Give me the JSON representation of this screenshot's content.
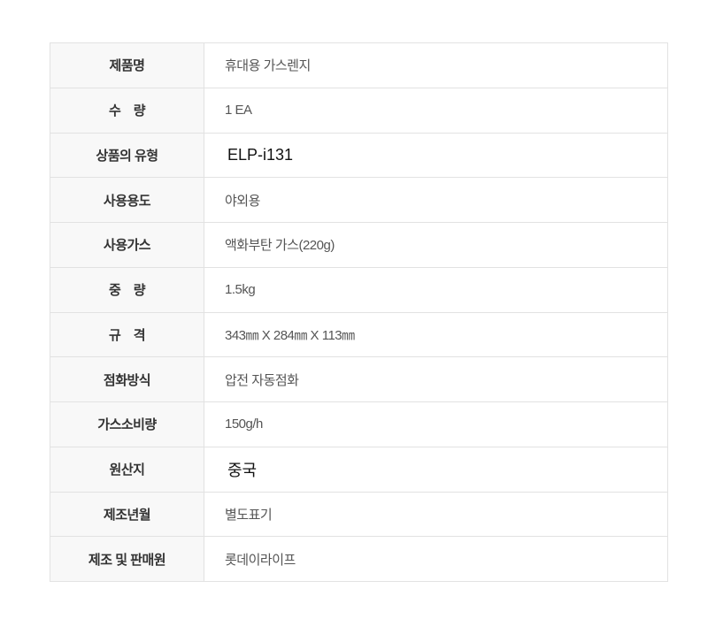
{
  "page": {
    "background_color": "#ffffff"
  },
  "table": {
    "border_color": "#e2e2e2",
    "label_background_color": "#f8f8f8",
    "label_text_color": "#333333",
    "value_text_color": "#555555",
    "highlight_value_text_color": "#111111",
    "rows": [
      {
        "label": "제품명",
        "value": "휴대용 가스렌지",
        "value_style": "default"
      },
      {
        "label": "수　량",
        "value": "1 EA",
        "value_style": "default"
      },
      {
        "label": "상품의 유형",
        "value": "ELP-i131",
        "value_style": "model"
      },
      {
        "label": "사용용도",
        "value": "야외용",
        "value_style": "default"
      },
      {
        "label": "사용가스",
        "value": "액화부탄 가스(220g)",
        "value_style": "default"
      },
      {
        "label": "중　량",
        "value": "1.5kg",
        "value_style": "default"
      },
      {
        "label": "규　격",
        "value": "343㎜ X 284㎜ X 113㎜",
        "value_style": "default"
      },
      {
        "label": "점화방식",
        "value": "압전 자동점화",
        "value_style": "default"
      },
      {
        "label": "가스소비량",
        "value": "150g/h",
        "value_style": "default"
      },
      {
        "label": "원산지",
        "value": "중국",
        "value_style": "model"
      },
      {
        "label": "제조년월",
        "value": "별도표기",
        "value_style": "default"
      },
      {
        "label": "제조 및 판매원",
        "value": "롯데이라이프",
        "value_style": "default"
      }
    ]
  }
}
